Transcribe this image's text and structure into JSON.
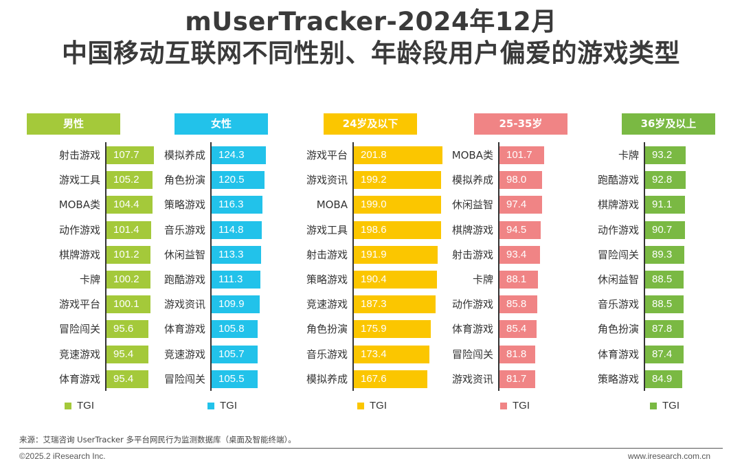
{
  "title_line1": "mUserTracker-2024年12月",
  "title_line2": "中国移动互联网不同性别、年龄段用户偏爱的游戏类型",
  "legend_label": "TGI",
  "source": "来源：艾瑞咨询 UserTracker 多平台网民行为监测数据库（桌面及智能终端）。",
  "copyright": "©2025.2 iResearch Inc.",
  "website": "www.iresearch.com.cn",
  "chart_data": [
    {
      "type": "bar",
      "orientation": "horizontal",
      "title": "男性",
      "color": "#a4c93a",
      "series": [
        {
          "name": "TGI",
          "values": [
            107.7,
            105.2,
            104.4,
            101.4,
            101.2,
            100.2,
            100.1,
            95.6,
            95.4,
            95.4
          ]
        }
      ],
      "categories": [
        "射击游戏",
        "游戏工具",
        "MOBA类",
        "动作游戏",
        "棋牌游戏",
        "卡牌",
        "游戏平台",
        "冒险闯关",
        "竞速游戏",
        "体育游戏"
      ]
    },
    {
      "type": "bar",
      "orientation": "horizontal",
      "title": "女性",
      "color": "#22c2ea",
      "series": [
        {
          "name": "TGI",
          "values": [
            124.3,
            120.5,
            116.3,
            114.8,
            113.3,
            111.3,
            109.9,
            105.8,
            105.7,
            105.5
          ]
        }
      ],
      "categories": [
        "模拟养成",
        "角色扮演",
        "策略游戏",
        "音乐游戏",
        "休闲益智",
        "跑酷游戏",
        "游戏资讯",
        "体育游戏",
        "竞速游戏",
        "冒险闯关"
      ]
    },
    {
      "type": "bar",
      "orientation": "horizontal",
      "title": "24岁及以下",
      "color": "#fbc600",
      "series": [
        {
          "name": "TGI",
          "values": [
            201.8,
            199.2,
            199.0,
            198.6,
            191.9,
            190.4,
            187.3,
            175.9,
            173.4,
            167.6
          ]
        }
      ],
      "categories": [
        "游戏平台",
        "游戏资讯",
        "MOBA",
        "游戏工具",
        "射击游戏",
        "策略游戏",
        "竞速游戏",
        "角色扮演",
        "音乐游戏",
        "模拟养成"
      ]
    },
    {
      "type": "bar",
      "orientation": "horizontal",
      "title": "25-35岁",
      "color": "#f08485",
      "series": [
        {
          "name": "TGI",
          "values": [
            101.7,
            98.0,
            97.4,
            94.5,
            93.4,
            88.1,
            85.8,
            85.4,
            81.8,
            81.7
          ]
        }
      ],
      "categories": [
        "MOBA类",
        "模拟养成",
        "休闲益智",
        "棋牌游戏",
        "射击游戏",
        "卡牌",
        "动作游戏",
        "体育游戏",
        "冒险闯关",
        "游戏资讯"
      ]
    },
    {
      "type": "bar",
      "orientation": "horizontal",
      "title": "36岁及以上",
      "color": "#7ab943",
      "series": [
        {
          "name": "TGI",
          "values": [
            93.2,
            92.8,
            91.1,
            90.7,
            89.3,
            88.5,
            88.5,
            87.8,
            87.4,
            84.9
          ]
        }
      ],
      "categories": [
        "卡牌",
        "跑酷游戏",
        "棋牌游戏",
        "动作游戏",
        "冒险闯关",
        "休闲益智",
        "音乐游戏",
        "角色扮演",
        "体育游戏",
        "策略游戏"
      ]
    }
  ]
}
